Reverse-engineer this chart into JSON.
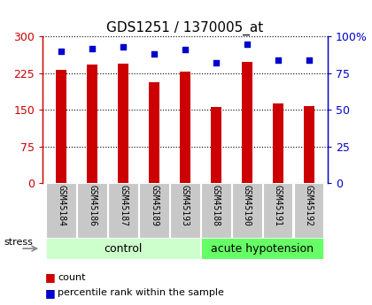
{
  "title": "GDS1251 / 1370005_at",
  "categories": [
    "GSM45184",
    "GSM45186",
    "GSM45187",
    "GSM45189",
    "GSM45193",
    "GSM45188",
    "GSM45190",
    "GSM45191",
    "GSM45192"
  ],
  "counts": [
    232,
    242,
    244,
    207,
    228,
    156,
    249,
    163,
    158
  ],
  "percentiles": [
    90,
    92,
    93,
    88,
    91,
    82,
    95,
    84,
    84
  ],
  "control_count": 5,
  "acute_count": 4,
  "bar_color": "#cc0000",
  "dot_color": "#0000cc",
  "ylim_left": [
    0,
    300
  ],
  "ylim_right": [
    0,
    100
  ],
  "yticks_left": [
    0,
    75,
    150,
    225,
    300
  ],
  "ytick_labels_left": [
    "0",
    "75",
    "150",
    "225",
    "300"
  ],
  "yticks_right": [
    0,
    25,
    50,
    75,
    100
  ],
  "ytick_labels_right": [
    "0",
    "25",
    "50",
    "75",
    "100%"
  ],
  "left_axis_color": "#cc0000",
  "right_axis_color": "#0000cc",
  "bg_xtick": "#c8c8c8",
  "control_color": "#ccffcc",
  "acute_color": "#66ff66",
  "stress_label": "stress",
  "legend_count": "count",
  "legend_percentile": "percentile rank within the sample",
  "title_fontsize": 11,
  "tick_fontsize": 9,
  "label_fontsize": 8,
  "bar_width": 0.35
}
